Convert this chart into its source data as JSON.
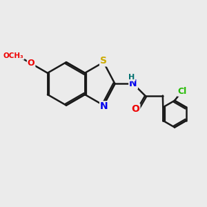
{
  "background_color": "#ebebeb",
  "bond_color": "#1a1a1a",
  "bond_width": 1.8,
  "atom_colors": {
    "S": "#ccaa00",
    "N": "#0000ee",
    "O": "#ee0000",
    "Cl": "#22bb00",
    "H": "#007070",
    "C": "#1a1a1a"
  },
  "font_size": 9,
  "figsize": [
    3.0,
    3.0
  ],
  "dpi": 100
}
